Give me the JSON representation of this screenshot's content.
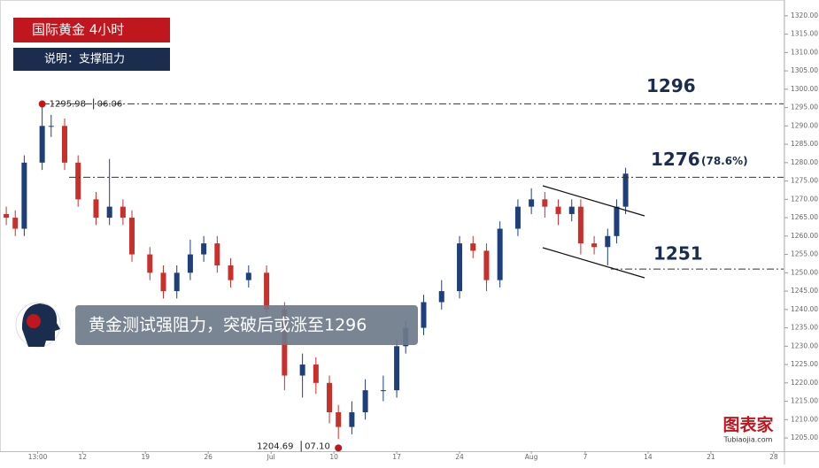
{
  "chart_data": {
    "type": "candlestick",
    "title": "国际黄金  4小时",
    "subtitle": "说明：支撑阻力",
    "banner": "黄金测试强阻力，突破后或涨至1296",
    "logo": "图表家",
    "logo_url": "Tubiaojia.com",
    "x": [
      3.5,
      4.5,
      5.5,
      7.5,
      8.5,
      10,
      11.5,
      13.5,
      15,
      16.5,
      17.5,
      19.5,
      21,
      22.5,
      24,
      25.5,
      27,
      28.5,
      30.5,
      32.5,
      34.5,
      36.5,
      38,
      39.5,
      40.5,
      42,
      43.5,
      45.5,
      47,
      48,
      50,
      52,
      54,
      55.5,
      57,
      58.5,
      60.5,
      62,
      63.5,
      65,
      66.5,
      67.5,
      69,
      70.5,
      71.5,
      72.5
    ],
    "open": [
      1266,
      1265,
      1262,
      1280,
      1290,
      1290,
      1280,
      1270,
      1265,
      1268,
      1265,
      1255,
      1250,
      1245,
      1250,
      1255,
      1258,
      1252,
      1248,
      1250,
      1240,
      1222,
      1225,
      1220,
      1212,
      1208,
      1212,
      1218,
      1218,
      1230,
      1235,
      1242,
      1245,
      1258,
      1256,
      1248,
      1262,
      1268,
      1270,
      1268,
      1266,
      1268,
      1258,
      1257,
      1260,
      1268
    ],
    "high": [
      1268,
      1267,
      1282,
      1295.98,
      1293,
      1292,
      1282,
      1272,
      1281,
      1270,
      1267,
      1257,
      1252,
      1252,
      1259,
      1260,
      1260,
      1254,
      1252,
      1252,
      1242,
      1228,
      1227,
      1222,
      1214,
      1215,
      1221,
      1222,
      1232,
      1237,
      1244,
      1248,
      1260,
      1260,
      1258,
      1264,
      1270,
      1273,
      1272,
      1270,
      1270,
      1270,
      1260,
      1262,
      1270,
      1278.6
    ],
    "low": [
      1263,
      1260,
      1260,
      1278,
      1287,
      1278,
      1268,
      1263,
      1263,
      1263,
      1253,
      1248,
      1243,
      1243,
      1248,
      1253,
      1250,
      1246,
      1246,
      1238,
      1218,
      1216,
      1217,
      1209,
      1204.69,
      1206,
      1210,
      1215,
      1216,
      1228,
      1233,
      1240,
      1243,
      1254,
      1245,
      1246,
      1260,
      1266,
      1265,
      1263,
      1264,
      1255,
      1255,
      1252,
      1258,
      1266
    ],
    "close": [
      1265,
      1262,
      1280,
      1290,
      1290,
      1280,
      1270,
      1265,
      1268,
      1265,
      1255,
      1250,
      1245,
      1250,
      1255,
      1258,
      1252,
      1248,
      1250,
      1240,
      1222,
      1225,
      1220,
      1212,
      1208,
      1212,
      1218,
      1218,
      1230,
      1235,
      1242,
      1245,
      1258,
      1256,
      1248,
      1262,
      1268,
      1270,
      1268,
      1266,
      1268,
      1258,
      1257,
      1260,
      1268,
      1277
    ],
    "up_color": "#1f3f7a",
    "down_color": "#c8302c",
    "xlim": [
      2.8,
      90.1
    ],
    "xticks": [
      {
        "value": 7,
        "label": "13:00"
      },
      12,
      19,
      26,
      {
        "value": 33,
        "label": "Jul"
      },
      {
        "value": 40,
        "label": "10"
      },
      {
        "value": 47,
        "label": "17"
      },
      {
        "value": 54,
        "label": "24"
      },
      {
        "value": 62,
        "label": "Aug"
      },
      {
        "value": 68,
        "label": "7"
      },
      {
        "value": 75,
        "label": "14"
      },
      {
        "value": 82,
        "label": "21"
      },
      {
        "value": 89,
        "label": "28"
      }
    ],
    "ylim": [
      1201.4,
      1324.3
    ],
    "yticks": [
      {
        "value": 1205,
        "label": "1205.00"
      },
      {
        "value": 1210,
        "label": "1210.00"
      },
      {
        "value": 1215,
        "label": "1215.00"
      },
      {
        "value": 1220,
        "label": "1220.00"
      },
      {
        "value": 1225,
        "label": "1225.00"
      },
      {
        "value": 1230,
        "label": "1230.00"
      },
      {
        "value": 1235,
        "label": "1235.00"
      },
      {
        "value": 1240,
        "label": "1240.00"
      },
      {
        "value": 1245,
        "label": "1245.00"
      },
      {
        "value": 1250,
        "label": "1250.00"
      },
      {
        "value": 1255,
        "label": "1255.00"
      },
      {
        "value": 1260,
        "label": "1260.00"
      },
      {
        "value": 1265,
        "label": "1265.00"
      },
      {
        "value": 1270,
        "label": "1270.00"
      },
      {
        "value": 1275,
        "label": "1275.00"
      },
      {
        "value": 1280,
        "label": "1280.00"
      },
      {
        "value": 1285,
        "label": "1285.00"
      },
      {
        "value": 1290,
        "label": "1290.00"
      },
      {
        "value": 1295,
        "label": "1295.00"
      },
      {
        "value": 1300,
        "label": "1300.00"
      },
      {
        "value": 1305,
        "label": "1305.00"
      },
      {
        "value": 1310,
        "label": "1310.00"
      },
      {
        "value": 1315,
        "label": "1315.00"
      },
      {
        "value": 1320,
        "label": "1320.00"
      }
    ],
    "levels": [
      1296,
      1276,
      1251
    ],
    "level_note": "(78.6%)",
    "extremes": [
      {
        "value": 1295.98,
        "date": "06.06",
        "x": 7.5
      },
      {
        "value": 1204.69,
        "date": "07.10",
        "x": 40.5
      }
    ]
  }
}
